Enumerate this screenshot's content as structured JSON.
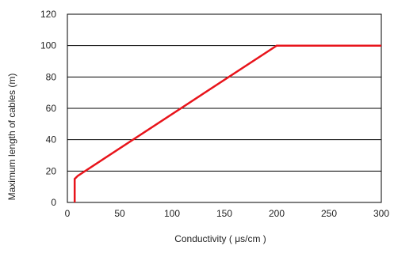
{
  "chart_data": {
    "type": "line",
    "title": "",
    "xlabel": "Conductivity  ( μs/cm )",
    "ylabel": "Maximum length of cables (m)",
    "xlim": [
      0,
      300
    ],
    "ylim": [
      0,
      120
    ],
    "x_ticks": [
      0,
      50,
      100,
      150,
      200,
      250,
      300
    ],
    "y_ticks": [
      0,
      20,
      40,
      60,
      80,
      100,
      120
    ],
    "x_tick_labels": [
      "0",
      "50",
      "100",
      "150",
      "200",
      "250",
      "300"
    ],
    "y_tick_labels": [
      "0",
      "20",
      "40",
      "60",
      "80",
      "100",
      "120"
    ],
    "grid": "horizontal",
    "legend": "none",
    "series": [
      {
        "x": [
          7,
          7,
          10,
          200,
          300
        ],
        "y": [
          0,
          15,
          17,
          100,
          100
        ],
        "color": "#e8141b"
      }
    ],
    "colors": {
      "line": "#e8141b",
      "axis": "#000000",
      "grid": "#000000",
      "text": "#222222"
    }
  }
}
